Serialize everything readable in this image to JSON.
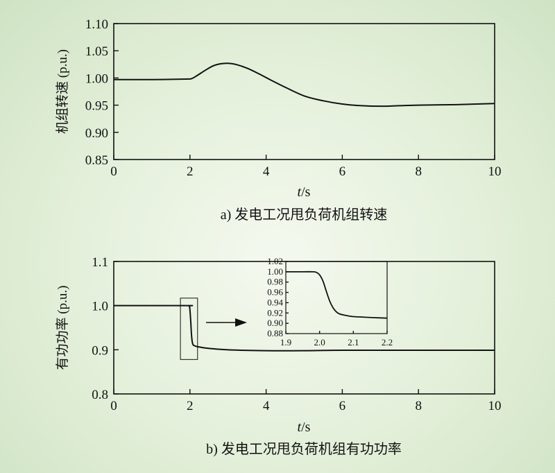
{
  "chart_data": [
    {
      "type": "line",
      "panel_label": "a)",
      "caption": "a) 发电工况甩负荷机组转速",
      "ylabel": "机组转速 (p.u.)",
      "xlabel_var": "t",
      "xlabel_unit": "/s",
      "xlim": [
        0,
        10
      ],
      "ylim": [
        0.85,
        1.1
      ],
      "x_ticks": [
        0,
        2,
        4,
        6,
        8,
        10
      ],
      "x_tick_labels": [
        "0",
        "2",
        "4",
        "6",
        "8",
        "10"
      ],
      "y_ticks": [
        0.85,
        0.9,
        0.95,
        1.0,
        1.05,
        1.1
      ],
      "y_tick_labels": [
        "0.85",
        "0.90",
        "0.95",
        "1.00",
        "1.05",
        "1.10"
      ],
      "grid": false,
      "series": [
        {
          "x": [
            0,
            1,
            1.9,
            2.05,
            2.2,
            2.4,
            2.6,
            2.8,
            3.0,
            3.2,
            3.5,
            3.8,
            4.1,
            4.5,
            5.0,
            5.5,
            6.0,
            6.5,
            7.0,
            7.5,
            8.0,
            9.0,
            10.0
          ],
          "y": [
            0.997,
            0.997,
            0.998,
            0.999,
            1.005,
            1.014,
            1.022,
            1.026,
            1.027,
            1.025,
            1.018,
            1.008,
            0.997,
            0.983,
            0.967,
            0.958,
            0.952,
            0.949,
            0.948,
            0.949,
            0.95,
            0.951,
            0.953
          ]
        }
      ]
    },
    {
      "type": "line",
      "panel_label": "b)",
      "caption": "b) 发电工况甩负荷机组有功功率",
      "ylabel": "有功功率 (p.u.)",
      "xlabel_var": "t",
      "xlabel_unit": "/s",
      "xlim": [
        0,
        10
      ],
      "ylim": [
        0.8,
        1.1
      ],
      "x_ticks": [
        0,
        2,
        4,
        6,
        8,
        10
      ],
      "x_tick_labels": [
        "0",
        "2",
        "4",
        "6",
        "8",
        "10"
      ],
      "y_ticks": [
        0.8,
        0.9,
        1.0,
        1.1
      ],
      "y_tick_labels": [
        "0.8",
        "0.9",
        "1.0",
        "1.1"
      ],
      "grid": false,
      "highlight_box": {
        "x": [
          1.75,
          2.2
        ],
        "y": [
          0.878,
          1.017
        ]
      },
      "series": [
        {
          "x": [
            0,
            1.9,
            1.98,
            2.0,
            2.02,
            2.04,
            2.06,
            2.08,
            2.1,
            2.2,
            2.5,
            3.0,
            4.0,
            5.0,
            6.0,
            8.0,
            10.0
          ],
          "y": [
            1.0,
            1.0,
            0.999,
            0.99,
            0.965,
            0.935,
            0.918,
            0.912,
            0.91,
            0.907,
            0.903,
            0.9,
            0.898,
            0.898,
            0.899,
            0.899,
            0.899
          ]
        }
      ],
      "inset": {
        "xlim": [
          1.9,
          2.2
        ],
        "ylim": [
          0.88,
          1.02
        ],
        "x_ticks": [
          1.9,
          2.0,
          2.1,
          2.2
        ],
        "x_tick_labels": [
          "1.9",
          "2.0",
          "2.1",
          "2.2"
        ],
        "y_ticks": [
          0.88,
          0.9,
          0.92,
          0.94,
          0.96,
          0.98,
          1.0,
          1.02
        ],
        "y_tick_labels": [
          "0.88",
          "0.90",
          "0.92",
          "0.94",
          "0.96",
          "0.98",
          "1.00",
          "1.02"
        ],
        "series": [
          {
            "x": [
              1.9,
              1.95,
              1.98,
              1.99,
              2.0,
              2.01,
              2.02,
              2.03,
              2.04,
              2.05,
              2.06,
              2.08,
              2.1,
              2.13,
              2.16,
              2.2
            ],
            "y": [
              1.0,
              1.0,
              1.0,
              0.999,
              0.994,
              0.982,
              0.962,
              0.943,
              0.93,
              0.922,
              0.918,
              0.915,
              0.913,
              0.912,
              0.911,
              0.91
            ]
          }
        ]
      }
    }
  ]
}
